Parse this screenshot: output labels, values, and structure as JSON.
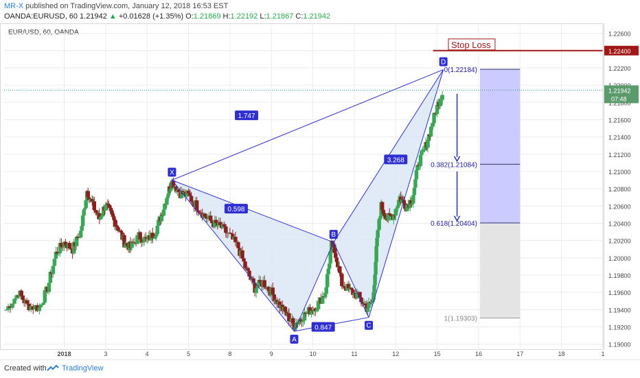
{
  "header": {
    "author": "MR-X",
    "published": "published on TradingView.com, January 12, 2018 16:53 EST",
    "symbol": "OANDA:EURUSD, 60",
    "last": "1.21942",
    "change": "+0.01628 (+1.35%)",
    "arrow": "▲",
    "o_label": "O:",
    "o": "1.21869",
    "h_label": "H:",
    "h": "1.22192",
    "l_label": "L:",
    "l": "1.21867",
    "c_label": "C:",
    "c": "1.21942"
  },
  "legend": "EUR/USD, 60, OANDA",
  "footer": {
    "created": "Created with",
    "brand": "TradingView"
  },
  "colors": {
    "up": "#3aa757",
    "down": "#8b2020",
    "pattern": "#2f2fd1",
    "pattern_fill": "#dbe7f6",
    "stop": "#a11717",
    "target_fill": "#c8c8ff",
    "risk_fill": "#e4e4e4",
    "grid": "#ececec",
    "price_line": "#2a9d8f"
  },
  "chart_data": {
    "type": "candlestick",
    "symbol": "EUR/USD",
    "timeframe": "60",
    "ylim": [
      1.1895,
      1.227
    ],
    "y_ticks": [
      1.19,
      1.192,
      1.194,
      1.196,
      1.198,
      1.2,
      1.202,
      1.204,
      1.206,
      1.208,
      1.21,
      1.212,
      1.214,
      1.216,
      1.218,
      1.22,
      1.222,
      1.224,
      1.226
    ],
    "y_tick_labels": [
      "1.19000",
      "1.19200",
      "1.19400",
      "1.19600",
      "1.19800",
      "1.20000",
      "1.20200",
      "1.20400",
      "1.20600",
      "1.20800",
      "1.21000",
      "1.21200",
      "1.21400",
      "1.21600",
      "1.21800",
      "1.22000",
      "1.22200",
      "1.22400",
      "1.22600"
    ],
    "x_ticks": [
      {
        "label": "2018",
        "x": 0.0
      },
      {
        "label": "3",
        "x": 1.0
      },
      {
        "label": "4",
        "x": 2.0
      },
      {
        "label": "5",
        "x": 3.0
      },
      {
        "label": "8",
        "x": 4.0
      },
      {
        "label": "9",
        "x": 5.0
      },
      {
        "label": "10",
        "x": 6.0
      },
      {
        "label": "11",
        "x": 7.0
      },
      {
        "label": "12",
        "x": 8.0
      },
      {
        "label": "15",
        "x": 9.0
      },
      {
        "label": "16",
        "x": 10.0
      },
      {
        "label": "17",
        "x": 11.0
      },
      {
        "label": "18",
        "x": 12.0
      },
      {
        "label": "1",
        "x": 13.0
      }
    ],
    "xlim": [
      -1.45,
      13.0
    ],
    "close_path": [
      [
        -1.4,
        1.194
      ],
      [
        -1.1,
        1.196
      ],
      [
        -0.9,
        1.1945
      ],
      [
        -0.6,
        1.1942
      ],
      [
        -0.4,
        1.1965
      ],
      [
        -0.2,
        1.2005
      ],
      [
        0.0,
        1.2018
      ],
      [
        0.2,
        1.201
      ],
      [
        0.4,
        1.203
      ],
      [
        0.55,
        1.2078
      ],
      [
        0.7,
        1.206
      ],
      [
        0.85,
        1.2045
      ],
      [
        1.0,
        1.2062
      ],
      [
        1.15,
        1.2048
      ],
      [
        1.3,
        1.2035
      ],
      [
        1.45,
        1.2018
      ],
      [
        1.6,
        1.2012
      ],
      [
        1.8,
        1.2025
      ],
      [
        2.0,
        1.202
      ],
      [
        2.2,
        1.203
      ],
      [
        2.35,
        1.205
      ],
      [
        2.5,
        1.2075
      ],
      [
        2.6,
        1.2088
      ],
      [
        2.8,
        1.2075
      ],
      [
        3.0,
        1.2072
      ],
      [
        3.2,
        1.206
      ],
      [
        3.4,
        1.2048
      ],
      [
        3.6,
        1.204
      ],
      [
        3.8,
        1.2035
      ],
      [
        4.0,
        1.2025
      ],
      [
        4.2,
        1.2012
      ],
      [
        4.4,
        1.1985
      ],
      [
        4.6,
        1.1965
      ],
      [
        4.8,
        1.1972
      ],
      [
        5.0,
        1.196
      ],
      [
        5.2,
        1.1945
      ],
      [
        5.4,
        1.1932
      ],
      [
        5.55,
        1.1922
      ],
      [
        5.7,
        1.193
      ],
      [
        5.9,
        1.1938
      ],
      [
        6.1,
        1.1945
      ],
      [
        6.3,
        1.196
      ],
      [
        6.45,
        1.2015
      ],
      [
        6.55,
        1.2005
      ],
      [
        6.7,
        1.197
      ],
      [
        6.9,
        1.1962
      ],
      [
        7.1,
        1.1955
      ],
      [
        7.3,
        1.1942
      ],
      [
        7.45,
        1.195
      ],
      [
        7.55,
        1.202
      ],
      [
        7.65,
        1.206
      ],
      [
        7.8,
        1.2045
      ],
      [
        7.95,
        1.205
      ],
      [
        8.1,
        1.207
      ],
      [
        8.25,
        1.206
      ],
      [
        8.4,
        1.2068
      ],
      [
        8.55,
        1.211
      ],
      [
        8.7,
        1.2125
      ],
      [
        8.85,
        1.215
      ],
      [
        9.0,
        1.2175
      ],
      [
        9.15,
        1.2194
      ]
    ],
    "harmonic_points": [
      {
        "name": "X",
        "x": 2.6,
        "y": 1.209
      },
      {
        "name": "A",
        "x": 5.55,
        "y": 1.1915
      },
      {
        "name": "B",
        "x": 6.5,
        "y": 1.2018
      },
      {
        "name": "C",
        "x": 7.35,
        "y": 1.1931
      },
      {
        "name": "D",
        "x": 9.15,
        "y": 1.2218
      }
    ],
    "ratios": [
      {
        "label": "1.747",
        "x": 4.4,
        "y": 1.2165
      },
      {
        "label": "0.598",
        "x": 4.15,
        "y": 1.2057
      },
      {
        "label": "3.268",
        "x": 8.0,
        "y": 1.2114
      },
      {
        "label": "0.847",
        "x": 6.25,
        "y": 1.192
      }
    ],
    "fib_levels": [
      {
        "ratio": "0",
        "value": 1.22184,
        "label": "0(1.22184)"
      },
      {
        "ratio": "0.382",
        "value": 1.21084,
        "label": "0.382(1.21084)"
      },
      {
        "ratio": "0.618",
        "value": 1.20404,
        "label": "0.618(1.20404)"
      },
      {
        "ratio": "1",
        "value": 1.19303,
        "label": "1(1.19303)"
      }
    ],
    "fib_x": [
      10.0,
      11.0
    ],
    "stop_loss": {
      "label": "Stop Loss",
      "value": 1.224,
      "value_label": "1.22400"
    },
    "last_price": {
      "value": 1.21942,
      "label": "1.21942",
      "countdown": "07:48"
    }
  }
}
